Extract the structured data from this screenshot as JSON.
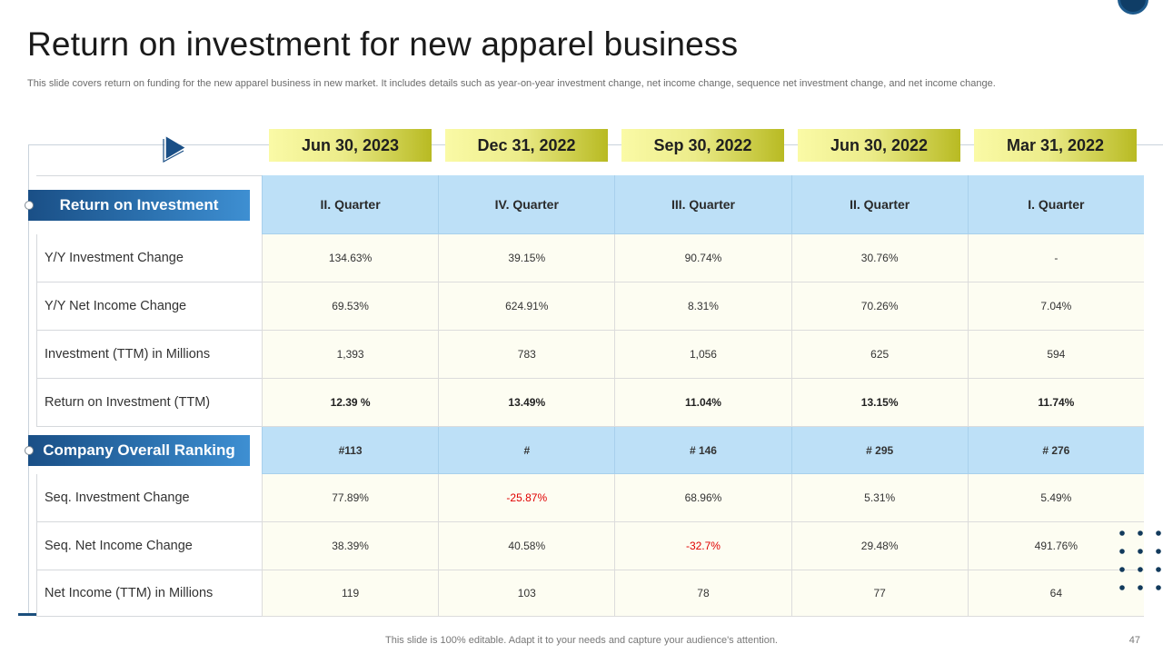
{
  "slide": {
    "title": "Return on investment for new apparel business",
    "subtitle": "This slide covers return on funding for the new apparel business in new market. It includes details such as year-on-year investment change, net income change, sequence net investment change, and net income change.",
    "footer_note": "This slide is 100% editable. Adapt it to your needs and capture your audience's attention.",
    "page_number": "47"
  },
  "dates": [
    "Jun 30, 2023",
    "Dec 31, 2022",
    "Sep 30, 2022",
    "Jun 30, 2022",
    "Mar 31, 2022"
  ],
  "quarters": [
    "II.  Quarter",
    "IV. Quarter",
    "III. Quarter",
    "II.  Quarter",
    "I.   Quarter"
  ],
  "sections": {
    "roi": "Return on Investment",
    "ranking": "Company Overall Ranking"
  },
  "ranking": [
    "#113",
    "#",
    "# 146",
    "# 295",
    "# 276"
  ],
  "rows": [
    {
      "label": "Y/Y Investment Change",
      "values": [
        "134.63%",
        "39.15%",
        "90.74%",
        "30.76%",
        "-"
      ]
    },
    {
      "label": "Y/Y Net Income Change",
      "values": [
        "69.53%",
        "624.91%",
        "8.31%",
        "70.26%",
        "7.04%"
      ]
    },
    {
      "label": "Investment (TTM) in Millions",
      "values": [
        "1,393",
        "783",
        "1,056",
        "625",
        "594"
      ]
    },
    {
      "label": "Return on Investment (TTM)",
      "values": [
        "12.39 %",
        "13.49%",
        "11.04%",
        "13.15%",
        "11.74%"
      ]
    },
    {
      "label": "Seq. Investment Change",
      "values": [
        "77.89%",
        "-25.87%",
        "68.96%",
        "5.31%",
        "5.49%"
      ]
    },
    {
      "label": "Seq. Net Income Change",
      "values": [
        "38.39%",
        "40.58%",
        "-32.7%",
        "29.48%",
        "491.76%"
      ]
    },
    {
      "label": "Net Income (TTM) in Millions",
      "values": [
        "119",
        "103",
        "78",
        "77",
        "64"
      ]
    }
  ],
  "colors": {
    "negative": "#e00000",
    "section_blue": "#2c72b0",
    "header_yellow": "#ecec8a",
    "row_blue": "#bde0f7"
  },
  "icons": [
    "play-arrow-icon",
    "decorative-dots-icon",
    "corner-circle-icon"
  ]
}
